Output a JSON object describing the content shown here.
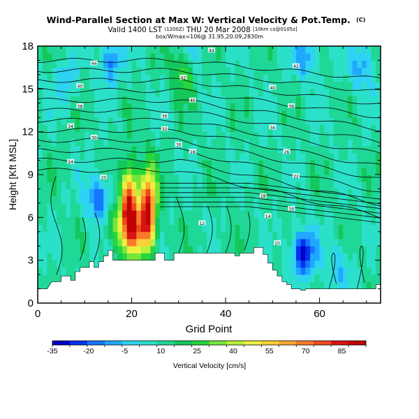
{
  "chart_data": {
    "type": "heatmap",
    "title": "Wind-Parallel Section at Max W: Vertical Velocity & Pot.Temp.",
    "title_unit": "(C)",
    "subtitle_valid": "Valid 1400 LST",
    "subtitle_z": "(1200Z)",
    "subtitle_date": "THU 20 Mar 2008",
    "subtitle_run": "[10km cs@0105z]",
    "subtitle_box": "box/Wmax=106@ 31.95,20.09,2830m",
    "xlabel": "Grid Point",
    "ylabel": "Height [Kft MSL]",
    "xlim": [
      0,
      73
    ],
    "ylim": [
      0,
      18
    ],
    "x_ticks": [
      0,
      20,
      40,
      60
    ],
    "y_ticks": [
      0,
      3,
      6,
      9,
      12,
      15,
      18
    ],
    "colorbar": {
      "label": "Vertical Velocity [cm/s]",
      "tick_labels": [
        "-35",
        "-20",
        "-5",
        "10",
        "25",
        "40",
        "55",
        "70",
        "85"
      ],
      "tick_values": [
        -35,
        -20,
        -5,
        10,
        25,
        40,
        55,
        70,
        85
      ],
      "min": -35,
      "max": 95,
      "colors": [
        "#0000c8",
        "#0033ee",
        "#1477ff",
        "#20a8ff",
        "#2ed2f2",
        "#2be0c8",
        "#1fd796",
        "#14c75a",
        "#26d63c",
        "#76e63a",
        "#b8f03c",
        "#eef040",
        "#fcd03a",
        "#fca832",
        "#f87a28",
        "#ee4a1e",
        "#d81414",
        "#c00000"
      ]
    },
    "updrafts": [
      {
        "x": 19.5,
        "y": 6.7,
        "w": 92
      },
      {
        "x": 23.5,
        "y": 6.7,
        "w": 86
      },
      {
        "x": 21.5,
        "y": 5.0,
        "w": 45
      },
      {
        "x": 31.5,
        "y": 16.5,
        "w": 45
      },
      {
        "x": 16.5,
        "y": 5.5,
        "w": 30
      }
    ],
    "downdrafts": [
      {
        "x": 13,
        "y": 7.3,
        "w": -20
      },
      {
        "x": 56.5,
        "y": 3.5,
        "w": -30
      },
      {
        "x": 15.5,
        "y": 17,
        "w": -15
      },
      {
        "x": 32.5,
        "y": 17,
        "w": -15
      },
      {
        "x": 57,
        "y": 17.2,
        "w": -12
      },
      {
        "x": 69,
        "y": 16.5,
        "w": -10
      },
      {
        "x": 64,
        "y": 2.5,
        "w": -5
      },
      {
        "x": 6,
        "y": 15.5,
        "w": -5
      }
    ],
    "contour_labels": [
      {
        "text": "44",
        "x": 12,
        "y": 16.8
      },
      {
        "text": "44",
        "x": 37,
        "y": 17.7
      },
      {
        "text": "42",
        "x": 55,
        "y": 16.6
      },
      {
        "text": "42",
        "x": 31,
        "y": 15.8
      },
      {
        "text": "40",
        "x": 9,
        "y": 15.2
      },
      {
        "text": "40",
        "x": 50,
        "y": 15.1
      },
      {
        "text": "40",
        "x": 33,
        "y": 14.2
      },
      {
        "text": "38",
        "x": 9,
        "y": 13.8
      },
      {
        "text": "38",
        "x": 54,
        "y": 13.8
      },
      {
        "text": "36",
        "x": 27,
        "y": 13.1
      },
      {
        "text": "34",
        "x": 7,
        "y": 12.4
      },
      {
        "text": "34",
        "x": 50,
        "y": 12.3
      },
      {
        "text": "32",
        "x": 27,
        "y": 12.2
      },
      {
        "text": "30",
        "x": 12,
        "y": 11.6
      },
      {
        "text": "30",
        "x": 30,
        "y": 11.1
      },
      {
        "text": "28",
        "x": 33,
        "y": 10.6
      },
      {
        "text": "26",
        "x": 53,
        "y": 10.6
      },
      {
        "text": "24",
        "x": 7,
        "y": 9.9
      },
      {
        "text": "22",
        "x": 55,
        "y": 8.9
      },
      {
        "text": "20",
        "x": 14,
        "y": 8.8
      },
      {
        "text": "18",
        "x": 48,
        "y": 7.5
      },
      {
        "text": "16",
        "x": 54,
        "y": 6.6
      },
      {
        "text": "14",
        "x": 49,
        "y": 6.1
      },
      {
        "text": "12",
        "x": 35,
        "y": 5.6
      },
      {
        "text": "10",
        "x": 51,
        "y": 4.2
      }
    ],
    "terrain": [
      [
        0,
        1.0
      ],
      [
        2,
        1.0
      ],
      [
        3,
        1.5
      ],
      [
        5,
        1.5
      ],
      [
        5,
        1.9
      ],
      [
        7,
        1.9
      ],
      [
        7,
        1.6
      ],
      [
        8,
        1.6
      ],
      [
        8,
        2.2
      ],
      [
        9,
        2.2
      ],
      [
        9,
        2.5
      ],
      [
        11,
        2.5
      ],
      [
        11,
        2.9
      ],
      [
        12,
        2.9
      ],
      [
        12,
        2.5
      ],
      [
        13,
        2.5
      ],
      [
        13,
        2.9
      ],
      [
        14,
        2.9
      ],
      [
        14,
        3.3
      ],
      [
        15,
        3.3
      ],
      [
        15,
        3.7
      ],
      [
        16,
        3.7
      ],
      [
        16,
        3.0
      ],
      [
        25,
        3.0
      ],
      [
        25,
        3.5
      ],
      [
        27,
        3.5
      ],
      [
        27,
        3.0
      ],
      [
        29,
        3.0
      ],
      [
        29,
        3.5
      ],
      [
        42,
        3.5
      ],
      [
        42,
        3.3
      ],
      [
        43,
        3.3
      ],
      [
        43,
        3.5
      ],
      [
        46,
        3.5
      ],
      [
        46,
        3.9
      ],
      [
        48,
        3.9
      ],
      [
        48,
        3.4
      ],
      [
        49,
        3.4
      ],
      [
        49,
        2.8
      ],
      [
        50,
        2.8
      ],
      [
        50,
        2.3
      ],
      [
        51,
        2.3
      ],
      [
        51,
        1.9
      ],
      [
        52,
        1.9
      ],
      [
        52,
        1.5
      ],
      [
        53,
        1.5
      ],
      [
        53,
        1.3
      ],
      [
        54,
        1.3
      ],
      [
        54,
        1.0
      ],
      [
        56,
        1.0
      ],
      [
        56,
        0.9
      ],
      [
        57,
        0.9
      ],
      [
        57,
        1.0
      ],
      [
        72,
        1.0
      ],
      [
        72,
        1.3
      ],
      [
        73,
        1.3
      ]
    ]
  }
}
